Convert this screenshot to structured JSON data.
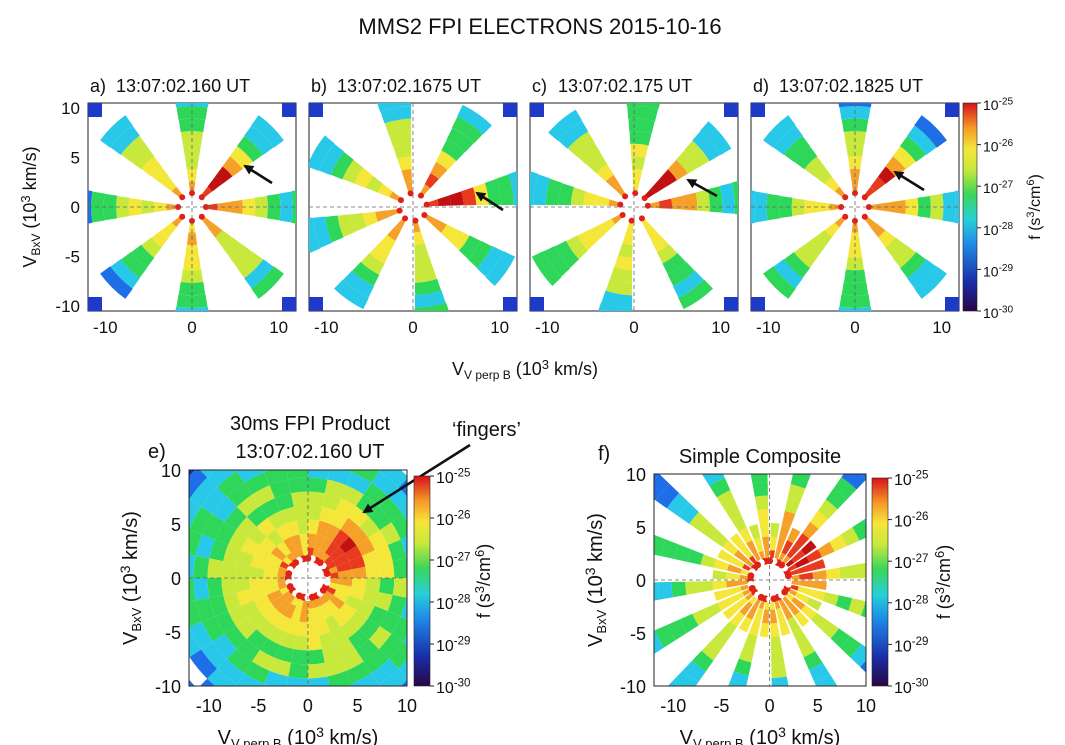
{
  "figure_title": "MMS2 FPI ELECTRONS 2015-10-16",
  "colormap": [
    "#3a0a55",
    "#1a2ea8",
    "#1e6ee8",
    "#28c8e8",
    "#2ed65a",
    "#c8e83c",
    "#f5e63a",
    "#f5a028",
    "#e83a1e",
    "#c01010"
  ],
  "colorbar": {
    "label": "f (s",
    "label_unit_exp": "3",
    "label_mid": "/cm",
    "label_unit_exp2": "6",
    "label_end": ")",
    "ticks": [
      {
        "base": "10",
        "exp": "-25"
      },
      {
        "base": "10",
        "exp": "-26"
      },
      {
        "base": "10",
        "exp": "-27"
      },
      {
        "base": "10",
        "exp": "-28"
      },
      {
        "base": "10",
        "exp": "-29"
      },
      {
        "base": "10",
        "exp": "-30"
      }
    ]
  },
  "top_xlabel": {
    "v": "V",
    "sub": "V perp B",
    "rest": " (10",
    "exp": "3",
    "end": " km/s)"
  },
  "ylabel": {
    "v": "V",
    "sub": "BxV",
    "rest": " (10",
    "exp": "3",
    "end": " km/s)"
  },
  "bottom_xlabel": {
    "v": "V",
    "sub": "V perp B",
    "rest": " (10",
    "exp": "3",
    "end": " km/s)"
  },
  "panels_top": [
    {
      "label": "a)",
      "time": "13:07:02.160 UT"
    },
    {
      "label": "b)",
      "time": "13:07:02.1675 UT"
    },
    {
      "label": "c)",
      "time": "13:07:02.175 UT"
    },
    {
      "label": "d)",
      "time": "13:07:02.1825 UT"
    }
  ],
  "panel_e": {
    "label": "e)",
    "title_line1": "30ms FPI Product",
    "title_line2": "13:07:02.160 UT",
    "annotation": "‘fingers’"
  },
  "panel_f": {
    "label": "f)",
    "title": "Simple Composite"
  },
  "chart_data": [
    {
      "type": "heatmap",
      "panel": "a",
      "title": "13:07:02.160 UT",
      "xlim": [
        -12,
        12
      ],
      "ylim": [
        -10,
        10
      ],
      "x_ticks": [
        "-10",
        "0",
        "10"
      ],
      "y_ticks": [
        "10",
        "5",
        "0",
        "-5",
        "-10"
      ],
      "arrow_target": [
        5,
        4
      ]
    },
    {
      "type": "heatmap",
      "panel": "b",
      "title": "13:07:02.1675 UT",
      "xlim": [
        -12,
        12
      ],
      "ylim": [
        -10,
        10
      ],
      "x_ticks": [
        "-10",
        "0",
        "10"
      ],
      "arrow_target": [
        7,
        1.5
      ]
    },
    {
      "type": "heatmap",
      "panel": "c",
      "title": "13:07:02.175 UT",
      "xlim": [
        -12,
        12
      ],
      "ylim": [
        -10,
        10
      ],
      "x_ticks": [
        "-10",
        "0",
        "10"
      ],
      "arrow_target": [
        5,
        3
      ]
    },
    {
      "type": "heatmap",
      "panel": "d",
      "title": "13:07:02.1825 UT",
      "xlim": [
        -12,
        12
      ],
      "ylim": [
        -10,
        10
      ],
      "x_ticks": [
        "-10",
        "0",
        "10"
      ],
      "arrow_target": [
        3.5,
        3.5
      ]
    },
    {
      "type": "heatmap",
      "panel": "e",
      "title": "30ms FPI Product 13:07:02.160 UT",
      "xlim": [
        -12,
        10
      ],
      "ylim": [
        -10,
        10
      ],
      "x_ticks": [
        "-10",
        "-5",
        "0",
        "5",
        "10"
      ],
      "y_ticks": [
        "10",
        "5",
        "0",
        "-5",
        "-10"
      ]
    },
    {
      "type": "heatmap",
      "panel": "f",
      "title": "Simple Composite",
      "xlim": [
        -12,
        10
      ],
      "ylim": [
        -10,
        10
      ],
      "x_ticks": [
        "-10",
        "-5",
        "0",
        "5",
        "10"
      ],
      "y_ticks": [
        "10",
        "5",
        "0",
        "-5",
        "-10"
      ]
    }
  ]
}
